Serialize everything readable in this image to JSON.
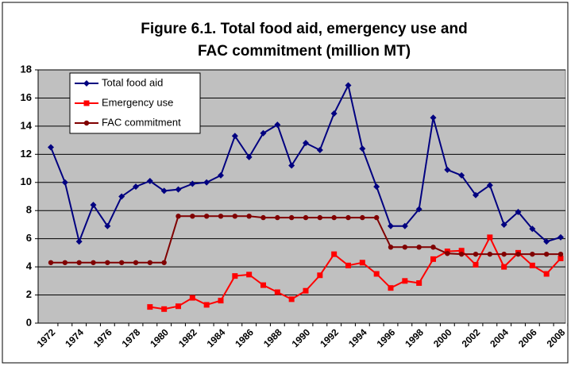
{
  "chart_data": {
    "type": "line",
    "title": [
      "Figure 6.1. Total food aid, emergency use and",
      "FAC commitment (million MT)"
    ],
    "categories": [
      "1972",
      null,
      "1974",
      null,
      "1976",
      null,
      "1978",
      null,
      "1980",
      null,
      "1982",
      null,
      "1984",
      null,
      "1986",
      null,
      "1988",
      null,
      "1990",
      null,
      "1992",
      null,
      "1994",
      null,
      "1996",
      null,
      "1998",
      null,
      "2000",
      null,
      "2002",
      null,
      "2004",
      null,
      "2006",
      null,
      "2008"
    ],
    "series": [
      {
        "name": "Total food aid",
        "color": "#000080",
        "marker": "diamond",
        "values": [
          12.5,
          10.0,
          5.8,
          8.4,
          6.9,
          9.0,
          9.7,
          10.1,
          9.4,
          9.5,
          9.9,
          10.0,
          10.5,
          13.3,
          11.8,
          13.5,
          14.1,
          11.2,
          12.8,
          12.3,
          14.9,
          16.9,
          12.4,
          9.7,
          6.9,
          6.9,
          8.1,
          14.6,
          10.9,
          10.5,
          9.1,
          9.8,
          7.0,
          7.9,
          6.7,
          5.8,
          6.1
        ]
      },
      {
        "name": "Emergency use",
        "color": "#ff0000",
        "marker": "square",
        "values": [
          null,
          null,
          null,
          null,
          null,
          null,
          null,
          1.15,
          1.0,
          1.2,
          1.8,
          1.3,
          1.6,
          3.35,
          3.45,
          2.7,
          2.2,
          1.7,
          2.3,
          3.4,
          4.9,
          4.1,
          4.3,
          3.5,
          2.5,
          3.0,
          2.85,
          4.55,
          5.1,
          5.15,
          4.15,
          6.1,
          4.0,
          5.0,
          4.1,
          3.5,
          4.6
        ]
      },
      {
        "name": "FAC commitment",
        "color": "#800000",
        "marker": "circle",
        "values": [
          4.3,
          4.3,
          4.3,
          4.3,
          4.3,
          4.3,
          4.3,
          4.3,
          4.3,
          7.6,
          7.6,
          7.6,
          7.6,
          7.6,
          7.6,
          7.5,
          7.5,
          7.5,
          7.5,
          7.5,
          7.5,
          7.5,
          7.5,
          7.5,
          5.4,
          5.4,
          5.4,
          5.4,
          4.95,
          4.9,
          4.9,
          4.9,
          4.9,
          4.9,
          4.9,
          4.9,
          4.9
        ]
      }
    ],
    "ylim": [
      0,
      18
    ],
    "yticks": [
      0,
      2,
      4,
      6,
      8,
      10,
      12,
      14,
      16,
      18
    ],
    "grid": true,
    "legend": "upper left",
    "plot_background": "#c0c0c0"
  }
}
